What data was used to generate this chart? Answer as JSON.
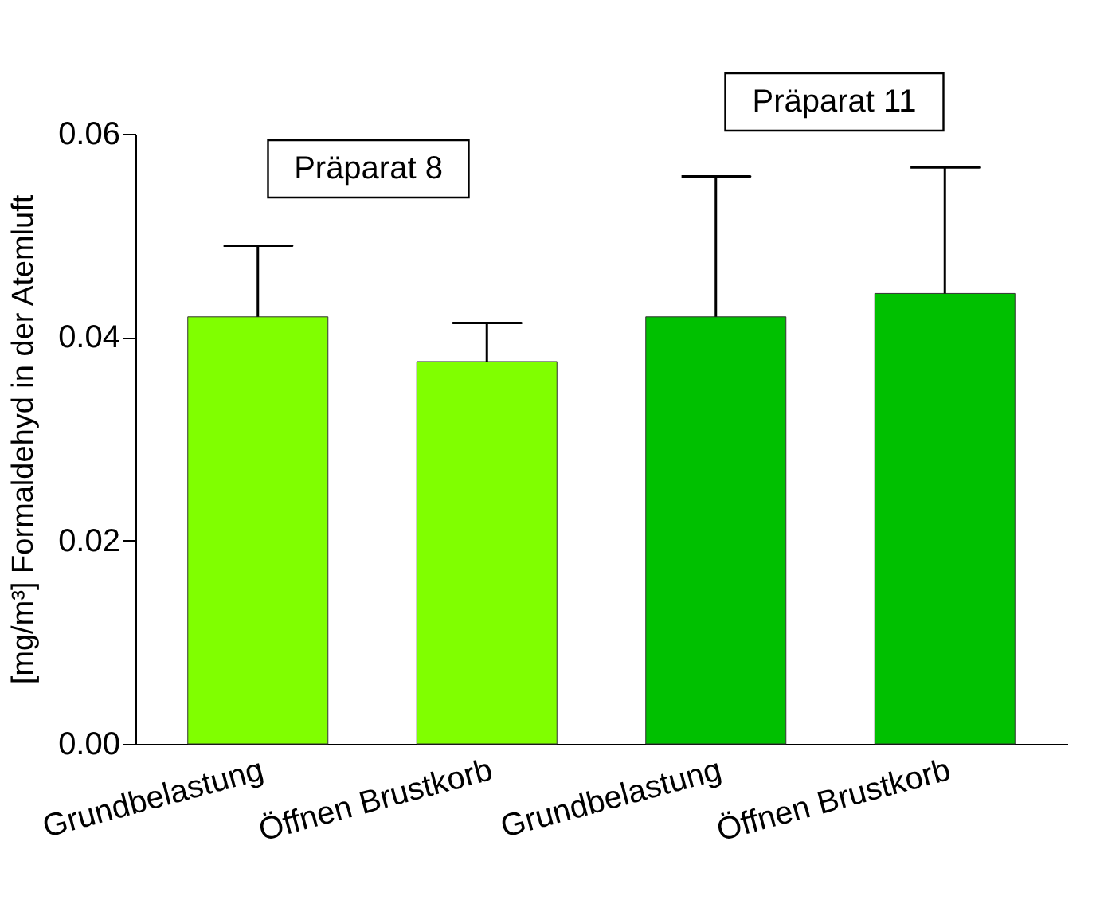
{
  "chart_data": {
    "type": "bar",
    "ylabel": "[mg/m³] Formaldehyd in der Atemluft",
    "categories": [
      "Grundbelastung",
      "Öffnen Brustkorb",
      "Grundbelastung",
      "Öffnen Brustkorb"
    ],
    "values": [
      0.042,
      0.0376,
      0.042,
      0.0443
    ],
    "colors": [
      "#80ff00",
      "#80ff00",
      "#00c000",
      "#00c000"
    ],
    "errors": [
      [
        0.042,
        0.049
      ],
      [
        0.0376,
        0.0414
      ],
      [
        0.042,
        0.0558
      ],
      [
        0.0443,
        0.0567
      ]
    ],
    "ylim": [
      0,
      0.06
    ],
    "yticks": [
      {
        "value": 0,
        "label": "0.00"
      },
      {
        "value": 0.02,
        "label": "0.02"
      },
      {
        "value": 0.04,
        "label": "0.04"
      },
      {
        "value": 0.06,
        "label": "0.06"
      }
    ],
    "annotations": [
      "Präparat 8",
      "Präparat 11"
    ],
    "grid": false
  }
}
